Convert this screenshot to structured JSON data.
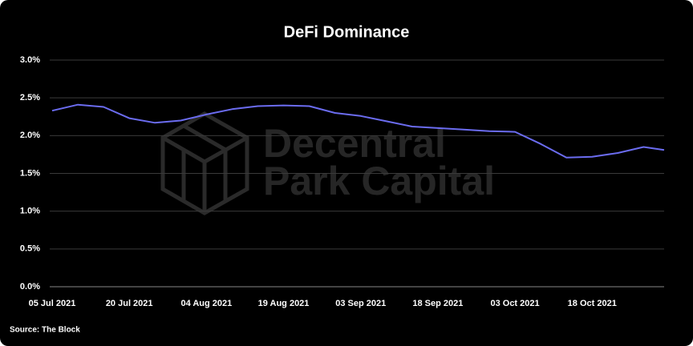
{
  "chart_data": {
    "type": "line",
    "title": "DeFi Dominance",
    "source": "Source: The Block",
    "watermark": [
      "Decentral",
      "Park Capital"
    ],
    "x": [
      "2021-07-05",
      "2021-07-10",
      "2021-07-15",
      "2021-07-20",
      "2021-07-25",
      "2021-07-30",
      "2021-08-04",
      "2021-08-09",
      "2021-08-14",
      "2021-08-19",
      "2021-08-24",
      "2021-08-29",
      "2021-09-03",
      "2021-09-08",
      "2021-09-13",
      "2021-09-18",
      "2021-09-23",
      "2021-09-28",
      "2021-10-03",
      "2021-10-08",
      "2021-10-13",
      "2021-10-18",
      "2021-10-23",
      "2021-10-28",
      "2021-11-01"
    ],
    "series": [
      {
        "name": "DeFi Dominance",
        "color": "#6b6cf0",
        "values": [
          2.33,
          2.41,
          2.38,
          2.23,
          2.17,
          2.2,
          2.28,
          2.35,
          2.39,
          2.4,
          2.39,
          2.3,
          2.26,
          2.19,
          2.12,
          2.1,
          2.08,
          2.06,
          2.05,
          1.89,
          1.71,
          1.72,
          1.77,
          1.85,
          1.81
        ]
      }
    ],
    "xlim": [
      "2021-07-05",
      "2021-11-01"
    ],
    "xticks": [
      {
        "value": "2021-07-05",
        "label": "05 Jul 2021"
      },
      {
        "value": "2021-07-20",
        "label": "20 Jul 2021"
      },
      {
        "value": "2021-08-04",
        "label": "04 Aug 2021"
      },
      {
        "value": "2021-08-19",
        "label": "19 Aug 2021"
      },
      {
        "value": "2021-09-03",
        "label": "03 Sep 2021"
      },
      {
        "value": "2021-09-18",
        "label": "18 Sep 2021"
      },
      {
        "value": "2021-10-03",
        "label": "03 Oct 2021"
      },
      {
        "value": "2021-10-18",
        "label": "18 Oct 2021"
      }
    ],
    "ylim": [
      0,
      3
    ],
    "yticks": [
      {
        "value": 0,
        "label": "0.0%"
      },
      {
        "value": 0.5,
        "label": "0.5%"
      },
      {
        "value": 1,
        "label": "1.0%"
      },
      {
        "value": 1.5,
        "label": "1.5%"
      },
      {
        "value": 2,
        "label": "2.0%"
      },
      {
        "value": 2.5,
        "label": "2.5%"
      },
      {
        "value": 3,
        "label": "3.0%"
      }
    ],
    "grid": true
  }
}
